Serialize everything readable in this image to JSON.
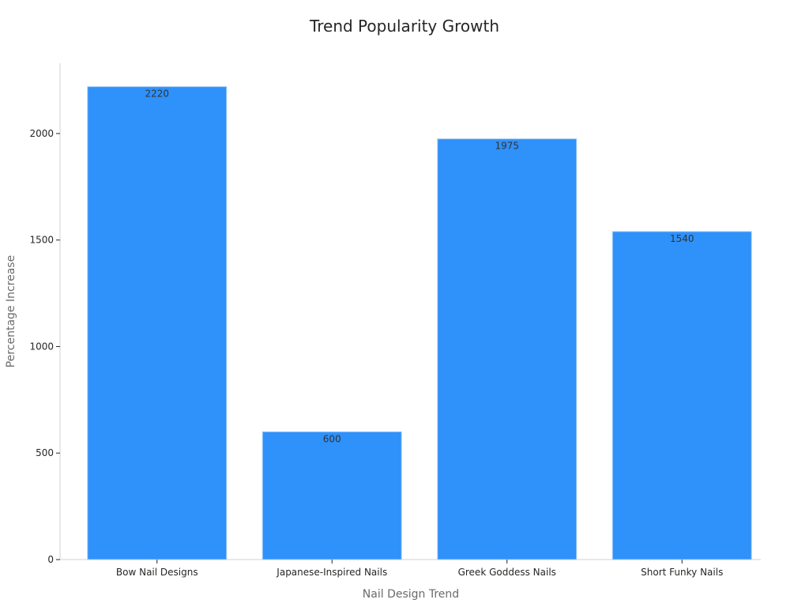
{
  "chart_data": {
    "type": "bar",
    "title": "Trend Popularity Growth",
    "xlabel": "Nail Design Trend",
    "ylabel": "Percentage Increase",
    "categories": [
      "Bow Nail Designs",
      "Japanese-Inspired Nails",
      "Greek Goddess Nails",
      "Short Funky Nails"
    ],
    "values": [
      2220,
      600,
      1975,
      1540
    ],
    "data_labels": [
      "2220",
      "600",
      "1975",
      "1540"
    ],
    "yticks": [
      0,
      500,
      1000,
      1500,
      2000
    ],
    "ylim": [
      0,
      2330
    ],
    "bar_color": "#2f91fa",
    "bar_edge_color": "#a8cffa",
    "grid": false,
    "legend": "none"
  }
}
